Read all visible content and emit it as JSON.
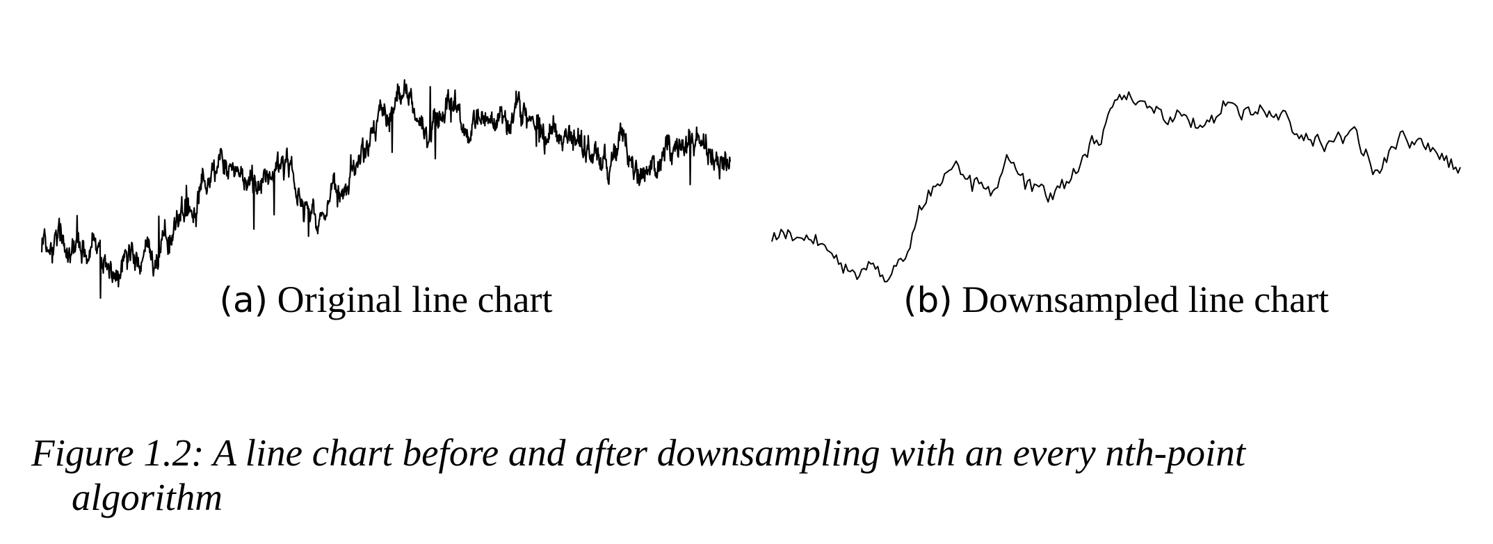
{
  "figure": {
    "caption_line1": "Figure 1.2: A line chart before and after downsampling with an every nth-point",
    "caption_line2": "algorithm"
  },
  "subfigures": [
    {
      "tag": "(a)",
      "title": "Original line chart"
    },
    {
      "tag": "(b)",
      "title": "Downsampled line chart"
    }
  ],
  "chart_data": [
    {
      "type": "line",
      "title": "",
      "xlabel": "",
      "ylabel": "",
      "grid": false,
      "axes_visible": false,
      "color": "#000000",
      "n_points": 1500,
      "shape_keypoints": {
        "x": [
          0,
          0.04,
          0.08,
          0.1,
          0.13,
          0.17,
          0.2,
          0.23,
          0.27,
          0.29,
          0.32,
          0.35,
          0.4,
          0.43,
          0.46,
          0.5,
          0.52,
          0.56,
          0.6,
          0.64,
          0.68,
          0.72,
          0.76,
          0.8,
          0.84,
          0.88,
          0.92,
          0.96,
          1.0
        ],
        "y": [
          0.32,
          0.3,
          0.27,
          0.2,
          0.24,
          0.22,
          0.4,
          0.55,
          0.62,
          0.55,
          0.5,
          0.58,
          0.45,
          0.48,
          0.6,
          0.77,
          0.85,
          0.8,
          0.79,
          0.72,
          0.8,
          0.79,
          0.7,
          0.62,
          0.67,
          0.6,
          0.65,
          0.66,
          0.58
        ]
      }
    },
    {
      "type": "line",
      "title": "",
      "xlabel": "",
      "ylabel": "",
      "grid": false,
      "axes_visible": false,
      "color": "#000000",
      "n_points": 300,
      "shape_keypoints": {
        "x": [
          0,
          0.04,
          0.08,
          0.1,
          0.13,
          0.17,
          0.2,
          0.23,
          0.27,
          0.29,
          0.32,
          0.35,
          0.4,
          0.43,
          0.46,
          0.5,
          0.52,
          0.56,
          0.6,
          0.64,
          0.68,
          0.72,
          0.76,
          0.8,
          0.84,
          0.88,
          0.92,
          0.96,
          1.0
        ],
        "y": [
          0.32,
          0.3,
          0.27,
          0.2,
          0.24,
          0.22,
          0.4,
          0.55,
          0.62,
          0.55,
          0.5,
          0.58,
          0.45,
          0.48,
          0.6,
          0.77,
          0.85,
          0.8,
          0.79,
          0.72,
          0.8,
          0.79,
          0.7,
          0.62,
          0.67,
          0.6,
          0.65,
          0.66,
          0.58
        ]
      }
    }
  ]
}
